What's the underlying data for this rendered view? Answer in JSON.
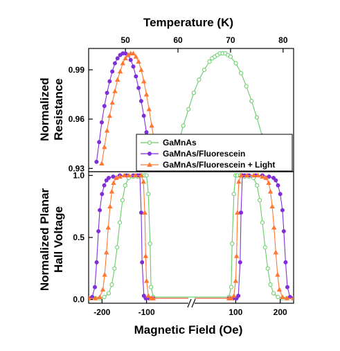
{
  "chart_data": [
    {
      "type": "line",
      "panel": "top",
      "xlabel": "Temperature (K)",
      "ylabel": [
        "Normalized",
        "Resistance"
      ],
      "xlim": [
        43,
        82
      ],
      "ylim": [
        0.928,
        1.003
      ],
      "xticks": [
        50,
        60,
        70,
        80
      ],
      "yticks": [
        0.93,
        0.96,
        0.99
      ],
      "ytick_labels": [
        "0.93",
        "0.96",
        "0.99"
      ],
      "grid": false,
      "legend_position": "bottom-right",
      "series": [
        {
          "name": "GaMnAs",
          "color": "#66cc66",
          "marker": "circle-open",
          "x": [
            60.0,
            61.0,
            62.0,
            63.0,
            64.0,
            65.0,
            66.0,
            66.5,
            67.0,
            67.5,
            68.0,
            68.5,
            69.0,
            69.5,
            70.0,
            71.0,
            72.0,
            73.0,
            74.0,
            75.0,
            76.0,
            77.0
          ],
          "y": [
            0.944,
            0.956,
            0.966,
            0.976,
            0.984,
            0.99,
            0.995,
            0.997,
            0.998,
            0.999,
            1.0,
            1.0,
            1.0,
            0.999,
            0.998,
            0.994,
            0.988,
            0.98,
            0.971,
            0.961,
            0.95,
            0.94
          ]
        },
        {
          "name": "GaMnAs/Fluorescein",
          "color": "#7f2fd8",
          "marker": "circle-filled",
          "x": [
            44.5,
            45.0,
            45.5,
            46.0,
            46.5,
            47.0,
            47.5,
            48.0,
            48.5,
            49.0,
            49.5,
            50.0,
            50.5,
            51.0,
            51.5,
            52.0,
            52.5,
            53.0,
            53.5,
            54.0,
            54.5
          ],
          "y": [
            0.934,
            0.946,
            0.958,
            0.968,
            0.976,
            0.983,
            0.989,
            0.994,
            0.997,
            0.999,
            1.0,
            1.0,
            0.999,
            0.996,
            0.992,
            0.986,
            0.979,
            0.971,
            0.962,
            0.952,
            0.941
          ]
        },
        {
          "name": "GaMnAs/Fluorescein + Light",
          "color": "#ff7733",
          "marker": "triangle-filled",
          "x": [
            45.5,
            46.0,
            46.5,
            47.0,
            47.5,
            48.0,
            48.5,
            49.0,
            49.5,
            50.0,
            50.5,
            51.0,
            51.5,
            52.0,
            52.5,
            53.0,
            53.5,
            54.0,
            54.5,
            55.0,
            55.5
          ],
          "y": [
            0.933,
            0.943,
            0.953,
            0.962,
            0.97,
            0.977,
            0.984,
            0.989,
            0.994,
            0.997,
            0.999,
            1.0,
            1.0,
            0.998,
            0.995,
            0.99,
            0.983,
            0.975,
            0.966,
            0.956,
            0.946
          ]
        }
      ]
    },
    {
      "type": "line",
      "panel": "bottom",
      "xlabel": "Magnetic Field (Oe)",
      "ylabel": [
        "Normalized Planar",
        "Hall Voltage"
      ],
      "xlim": [
        -230,
        230
      ],
      "axis_break": [
        -85,
        85
      ],
      "ylim": [
        -0.03,
        1.03
      ],
      "xticks": [
        -200,
        -100,
        100,
        200
      ],
      "yticks": [
        0.0,
        0.5,
        1.0
      ],
      "ytick_labels": [
        "0.0",
        "0.5",
        "1.0"
      ],
      "grid": false,
      "series": [
        {
          "name": "GaMnAs",
          "color": "#66cc66",
          "marker": "circle-open",
          "x": [
            -230,
            -215,
            -205,
            -195,
            -185,
            -178,
            -172,
            -166,
            -160,
            -154,
            -148,
            -140,
            -130,
            -120,
            -110,
            -104,
            -100,
            -96,
            -92,
            -90,
            -85,
            85,
            90,
            92,
            96,
            100,
            104,
            110,
            120,
            130,
            140,
            148,
            154,
            160,
            166,
            172,
            178,
            185,
            195,
            205,
            215,
            230
          ],
          "y": [
            0.01,
            0.01,
            0.01,
            0.02,
            0.05,
            0.12,
            0.25,
            0.42,
            0.62,
            0.8,
            0.92,
            0.98,
            0.99,
            0.99,
            1.0,
            1.0,
            1.0,
            0.85,
            0.45,
            0.1,
            0.02,
            0.02,
            0.1,
            0.45,
            0.85,
            1.0,
            1.0,
            1.0,
            0.99,
            0.99,
            0.98,
            0.92,
            0.8,
            0.62,
            0.42,
            0.25,
            0.12,
            0.05,
            0.02,
            0.01,
            0.01,
            0.01
          ]
        },
        {
          "name": "GaMnAs/Fluorescein",
          "color": "#7f2fd8",
          "marker": "circle-filled",
          "x": [
            -230,
            -222,
            -216,
            -212,
            -208,
            -205,
            -200,
            -195,
            -190,
            -185,
            -175,
            -160,
            -145,
            -130,
            -120,
            -115,
            -112,
            -110,
            -106,
            -102,
            -95,
            -85,
            85,
            95,
            102,
            106,
            110,
            112,
            115,
            120,
            130,
            145,
            160,
            175,
            185,
            190,
            195,
            200,
            205,
            208,
            212,
            216,
            222,
            230
          ],
          "y": [
            0.01,
            0.02,
            0.1,
            0.3,
            0.55,
            0.72,
            0.85,
            0.92,
            0.96,
            0.98,
            0.99,
            1.0,
            1.0,
            1.0,
            1.0,
            1.0,
            0.7,
            0.3,
            0.03,
            0.01,
            0.01,
            0.01,
            0.01,
            0.01,
            0.01,
            0.03,
            0.3,
            0.7,
            1.0,
            1.0,
            1.0,
            1.0,
            1.0,
            0.99,
            0.98,
            0.96,
            0.92,
            0.85,
            0.72,
            0.55,
            0.3,
            0.1,
            0.02,
            0.01
          ]
        },
        {
          "name": "GaMnAs/Fluorescein + Light",
          "color": "#ff7733",
          "marker": "triangle-filled",
          "x": [
            -230,
            -215,
            -205,
            -198,
            -194,
            -190,
            -186,
            -182,
            -178,
            -174,
            -168,
            -160,
            -150,
            -140,
            -125,
            -112,
            -107,
            -104,
            -102,
            -100,
            -96,
            -90,
            -85,
            85,
            90,
            96,
            100,
            102,
            104,
            107,
            112,
            125,
            140,
            150,
            160,
            168,
            174,
            178,
            182,
            186,
            190,
            194,
            198,
            205,
            215,
            230
          ],
          "y": [
            0.01,
            0.01,
            0.02,
            0.08,
            0.2,
            0.38,
            0.58,
            0.75,
            0.87,
            0.94,
            0.98,
            0.99,
            1.0,
            1.0,
            1.0,
            1.0,
            0.95,
            0.7,
            0.35,
            0.15,
            0.03,
            0.01,
            0.01,
            0.01,
            0.01,
            0.03,
            0.15,
            0.35,
            0.7,
            0.95,
            1.0,
            1.0,
            1.0,
            1.0,
            0.99,
            0.98,
            0.94,
            0.87,
            0.75,
            0.58,
            0.38,
            0.2,
            0.08,
            0.02,
            0.01,
            0.01
          ]
        }
      ]
    }
  ]
}
